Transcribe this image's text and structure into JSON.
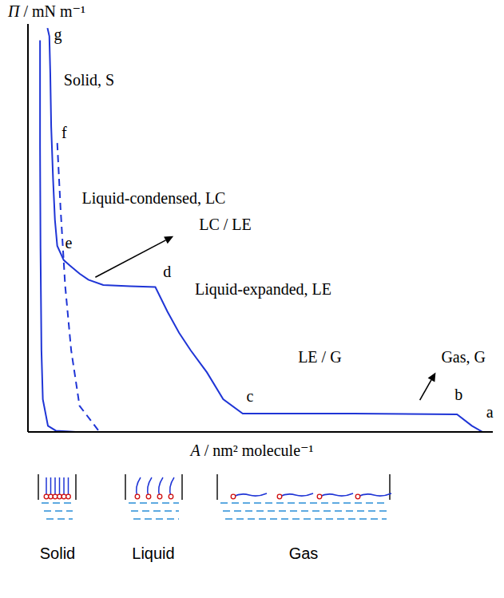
{
  "chart_data": {
    "type": "line",
    "y_label": "Π / mN m⁻¹",
    "x_label": "A / nm² molecule⁻¹",
    "xlim": [
      0,
      100
    ],
    "ylim": [
      0,
      100
    ],
    "tick_labels": false,
    "series": [
      {
        "color": "#1f35d6",
        "line_style": "solid",
        "x": [
          97.8,
          95.5,
          92.3,
          70,
          46.2,
          42,
          38.5,
          35,
          32.5,
          30,
          27.4,
          22,
          16.2,
          13,
          11.1,
          9,
          7.7,
          6.3,
          5.8,
          5.4,
          5.0,
          4.8,
          4.6,
          4.2
        ],
        "y": [
          0,
          1.5,
          4.3,
          4.5,
          4.5,
          8,
          14.6,
          20,
          24.3,
          29.5,
          35.5,
          35.7,
          36,
          37.3,
          38.8,
          40.8,
          42.1,
          45.6,
          52,
          62,
          74.8,
          88,
          97,
          99
        ]
      },
      {
        "color": "#1f35d6",
        "line_style": "dashed",
        "x": [
          97.4,
          15.4,
          11.1,
          9.3,
          8.0,
          7.0,
          6.3
        ],
        "y": [
          0,
          0,
          6.4,
          20,
          35.9,
          55,
          70.9
        ]
      },
      {
        "color": "#1f35d6",
        "line_style": "solid",
        "x": [
          10.3,
          6,
          4.3,
          3.2,
          2.9,
          2.7,
          2.6,
          2.6
        ],
        "y": [
          0,
          0.3,
          1.5,
          8,
          20,
          45,
          70,
          96
        ]
      }
    ],
    "point_labels": [
      {
        "text": "a",
        "x": 98.6,
        "y": 3.5
      },
      {
        "text": "b",
        "x": 91.8,
        "y": 7.8
      },
      {
        "text": "c",
        "x": 47,
        "y": 7.4
      },
      {
        "text": "d",
        "x": 29.1,
        "y": 37.9
      },
      {
        "text": "e",
        "x": 8,
        "y": 45
      },
      {
        "text": "f",
        "x": 7.2,
        "y": 72
      },
      {
        "text": "g",
        "x": 5.6,
        "y": 96
      }
    ],
    "annotations": [
      {
        "text": "Solid, S",
        "x": 7.7,
        "y": 85
      },
      {
        "text": "Liquid-condensed, LC",
        "x": 11.6,
        "y": 55.9
      },
      {
        "text": "LC / LE",
        "x": 36.8,
        "y": 49.5,
        "arrow": [
          [
            14.5,
            37.9
          ],
          [
            31.3,
            48
          ]
        ]
      },
      {
        "text": "Liquid-expanded, LE",
        "x": 35.9,
        "y": 33.6
      },
      {
        "text": "LE / G",
        "x": 58.1,
        "y": 17.1
      },
      {
        "text": "Gas, G",
        "x": 88.9,
        "y": 17.1,
        "arrow": [
          [
            84.3,
            7.8
          ],
          [
            87.7,
            14.6
          ]
        ]
      }
    ]
  },
  "cartoons": [
    "Solid",
    "Liquid",
    "Gas"
  ]
}
